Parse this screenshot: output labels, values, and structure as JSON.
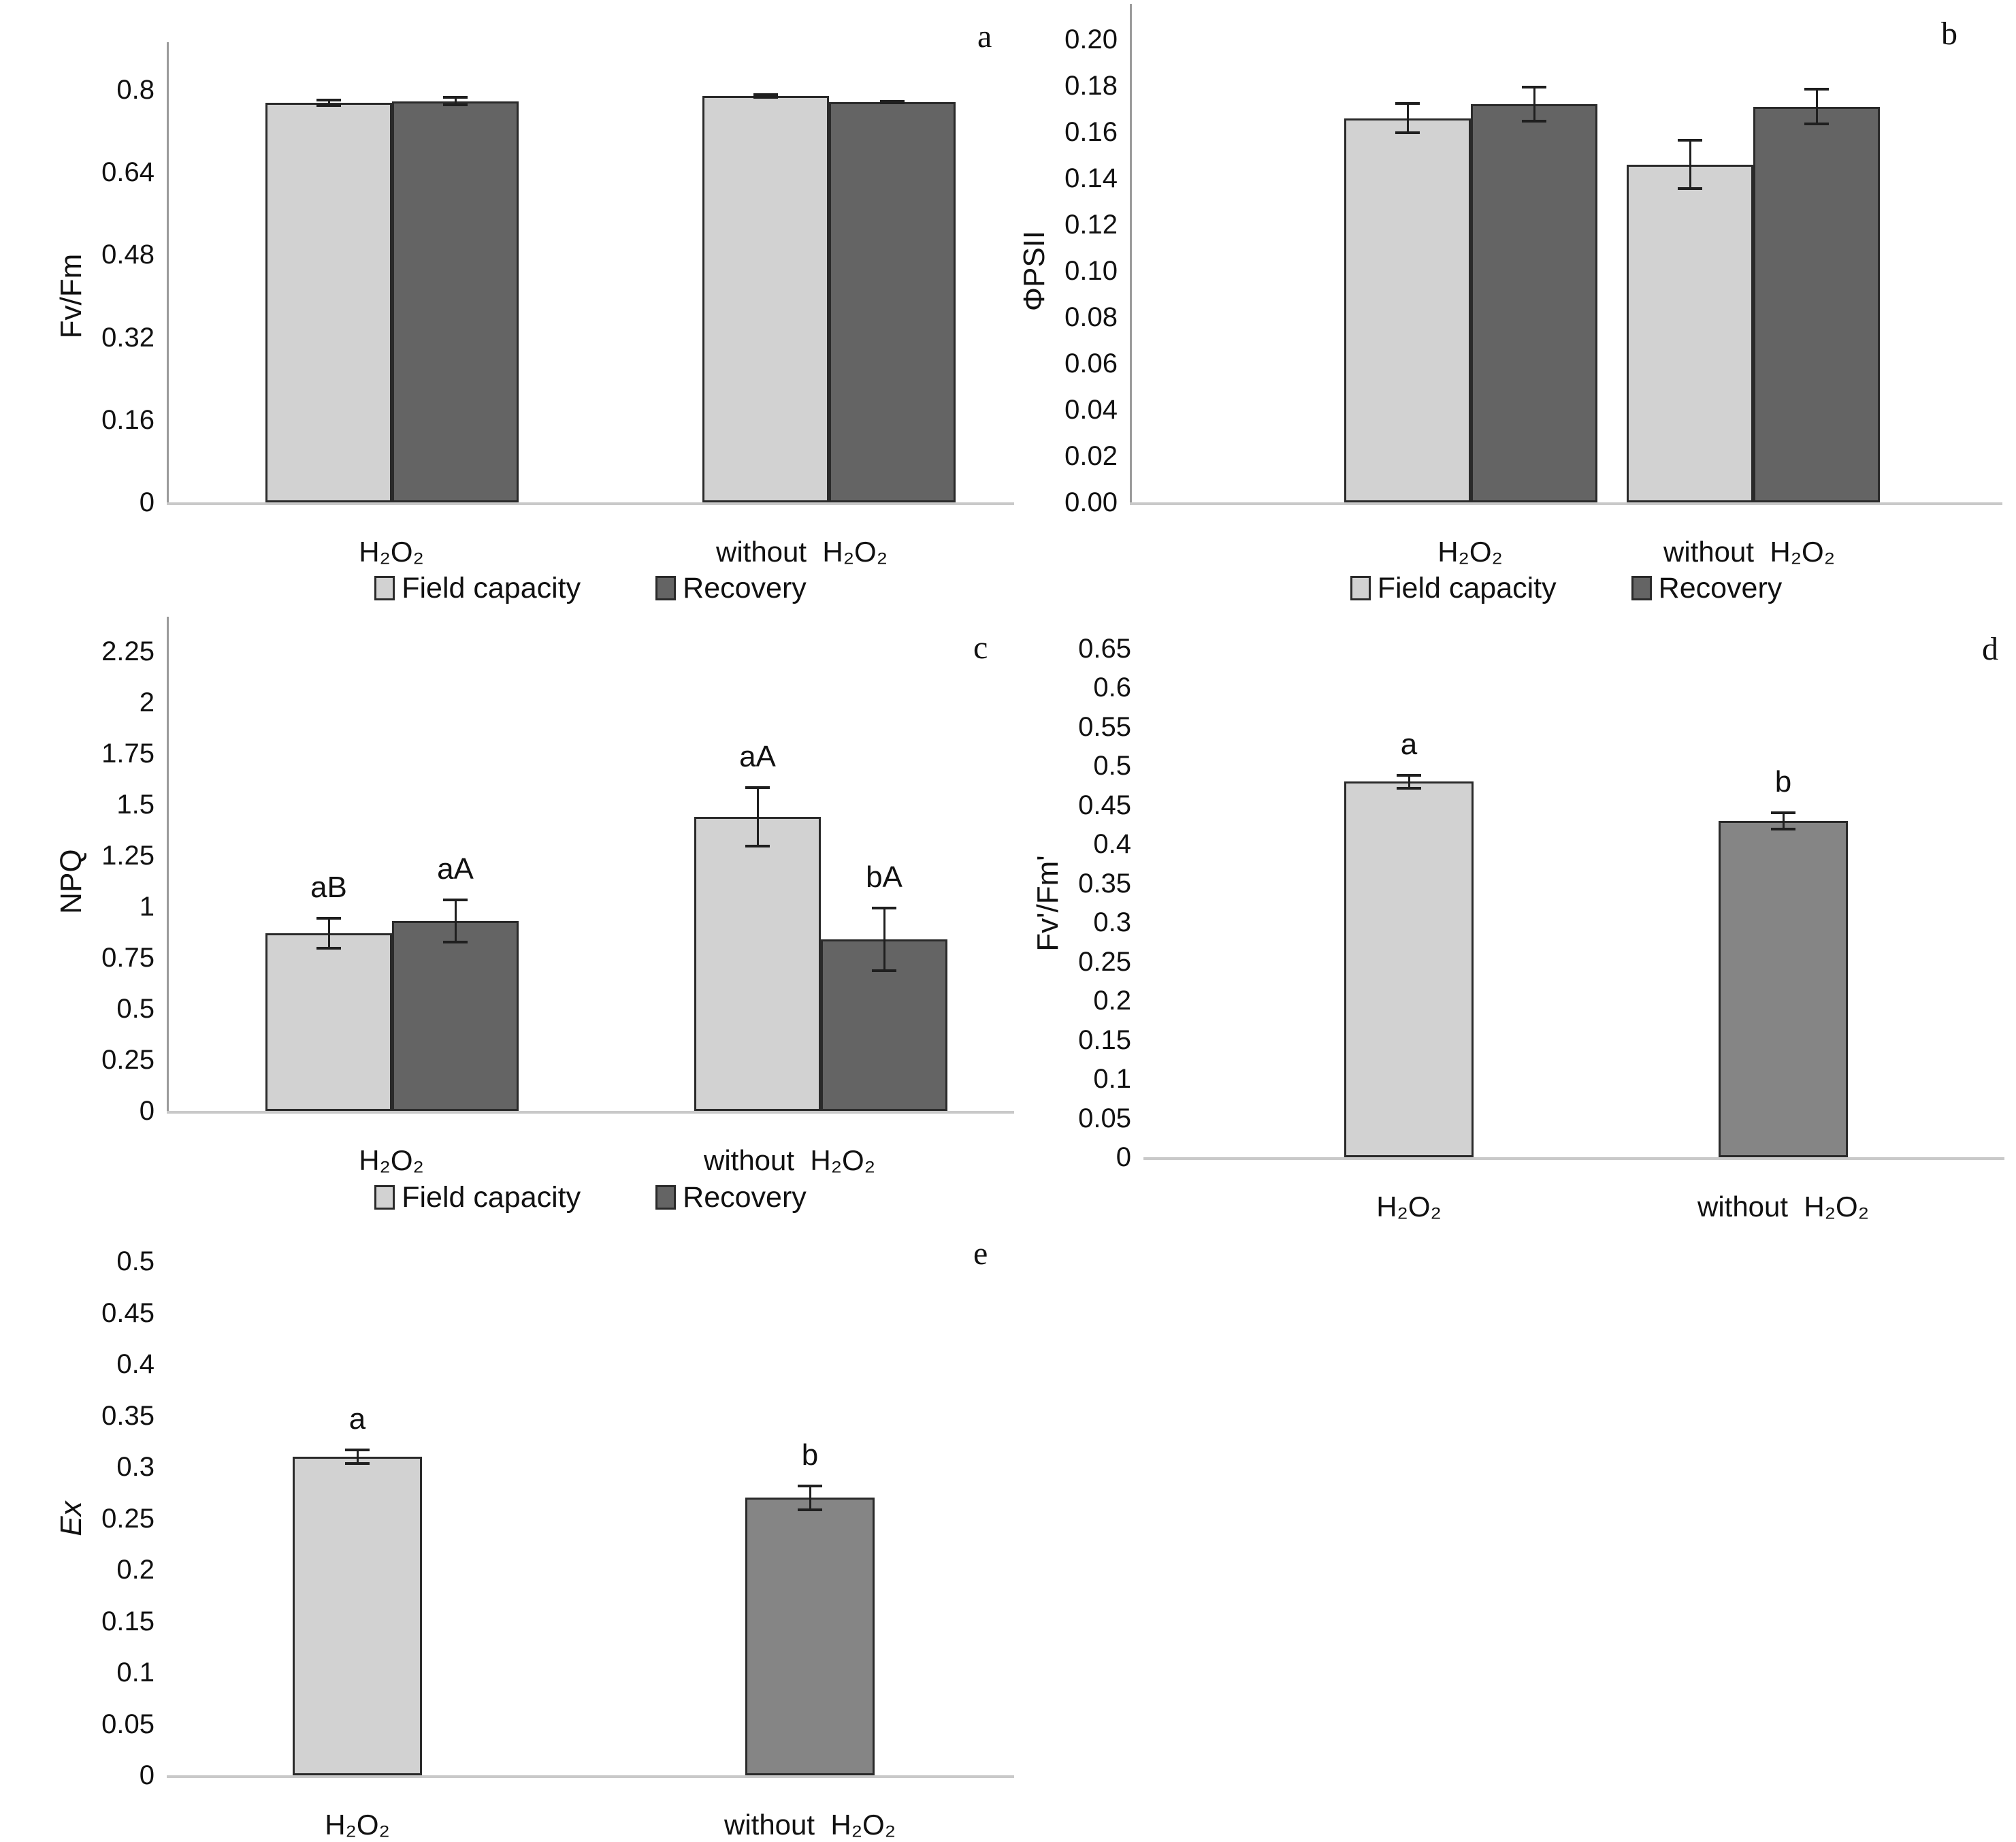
{
  "figure": {
    "description": "Five-panel bar chart figure of chlorophyll fluorescence parameters under H2O2 treatment",
    "treatments": [
      "H₂O₂",
      "without  H₂O₂"
    ],
    "water_regimes": [
      "Field capacity",
      "Recovery"
    ]
  },
  "colors": {
    "light": "#d2d2d2",
    "dark": "#646464",
    "mid": "#858585",
    "bar_border": "#2a2a2a",
    "axis_line": "#9b9b9b",
    "baseline": "#c9c9c9",
    "error_bar": "#1f1f1f"
  },
  "legend": {
    "field_capacity": "Field capacity",
    "recovery": "Recovery"
  },
  "chart_data": [
    {
      "id": "a",
      "type": "bar",
      "panel_label": "a",
      "ylabel": "Fv/Fm",
      "ylabel_italic": false,
      "ylim": [
        0,
        0.8
      ],
      "yticks": [
        "0.8",
        "0.64",
        "0.48",
        "0.32",
        "0.16",
        "0"
      ],
      "grid": false,
      "legend_position": "bottom",
      "categories": [
        "H₂O₂",
        "without  H₂O₂"
      ],
      "series": [
        {
          "name": "Field capacity",
          "key": "light",
          "values": [
            0.775,
            0.788
          ],
          "errors": [
            0.008,
            0.005
          ]
        },
        {
          "name": "Recovery",
          "key": "dark",
          "values": [
            0.778,
            0.776
          ],
          "errors": [
            0.01,
            0.004
          ]
        }
      ],
      "show_legend": true
    },
    {
      "id": "b",
      "type": "bar",
      "panel_label": "b",
      "ylabel": "ΦPSII",
      "ylabel_italic": false,
      "ylim": [
        0,
        0.2
      ],
      "yticks": [
        "0.20",
        "0.18",
        "0.16",
        "0.14",
        "0.12",
        "0.10",
        "0.08",
        "0.06",
        "0.04",
        "0.02",
        "0.00"
      ],
      "grid": false,
      "legend_position": "bottom",
      "categories": [
        "H₂O₂",
        "without  H₂O₂"
      ],
      "series": [
        {
          "name": "Field capacity",
          "key": "light",
          "values": [
            0.166,
            0.146
          ],
          "errors": [
            0.007,
            0.011
          ]
        },
        {
          "name": "Recovery",
          "key": "dark",
          "values": [
            0.172,
            0.171
          ],
          "errors": [
            0.008,
            0.008
          ]
        }
      ],
      "show_legend": true
    },
    {
      "id": "c",
      "type": "bar",
      "panel_label": "c",
      "ylabel": "NPQ",
      "ylabel_italic": false,
      "ylim": [
        0,
        2.25
      ],
      "yticks": [
        "2.25",
        "2",
        "1.75",
        "1.5",
        "1.25",
        "1",
        "0.75",
        "0.5",
        "0.25",
        "0"
      ],
      "grid": false,
      "legend_position": "bottom",
      "categories": [
        "H₂O₂",
        "without  H₂O₂"
      ],
      "series": [
        {
          "name": "Field capacity",
          "key": "light",
          "values": [
            0.87,
            1.44
          ],
          "errors": [
            0.08,
            0.15
          ],
          "letters": [
            "aB",
            "aA"
          ]
        },
        {
          "name": "Recovery",
          "key": "dark",
          "values": [
            0.93,
            0.84
          ],
          "errors": [
            0.11,
            0.16
          ],
          "letters": [
            "aA",
            "bA"
          ]
        }
      ],
      "show_legend": true
    },
    {
      "id": "d",
      "type": "bar",
      "panel_label": "d",
      "ylabel": "Fv'/Fm'",
      "ylabel_italic": false,
      "ylim": [
        0,
        0.65
      ],
      "yticks": [
        "0.65",
        "0.6",
        "0.55",
        "0.5",
        "0.45",
        "0.4",
        "0.35",
        "0.3",
        "0.25",
        "0.2",
        "0.15",
        "0.1",
        "0.05",
        "0"
      ],
      "grid": false,
      "legend_position": "none",
      "categories": [
        "H₂O₂",
        "without  H₂O₂"
      ],
      "series": [
        {
          "name": "Fv'/Fm'",
          "colors": [
            "light",
            "mid"
          ],
          "values": [
            0.48,
            0.43
          ],
          "errors": [
            0.01,
            0.012
          ],
          "letters": [
            "a",
            "b"
          ]
        }
      ],
      "show_legend": false
    },
    {
      "id": "e",
      "type": "bar",
      "panel_label": "e",
      "ylabel": "Ex",
      "ylabel_italic": true,
      "ylim": [
        0,
        0.5
      ],
      "yticks": [
        "0.5",
        "0.45",
        "0.4",
        "0.35",
        "0.3",
        "0.25",
        "0.2",
        "0.15",
        "0.1",
        "0.05",
        "0"
      ],
      "grid": false,
      "legend_position": "none",
      "categories": [
        "H₂O₂",
        "without  H₂O₂"
      ],
      "series": [
        {
          "name": "Ex",
          "colors": [
            "light",
            "mid"
          ],
          "values": [
            0.31,
            0.27
          ],
          "errors": [
            0.008,
            0.013
          ],
          "letters": [
            "a",
            "b"
          ]
        }
      ],
      "show_legend": false
    }
  ]
}
